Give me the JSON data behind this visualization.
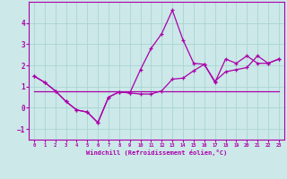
{
  "xlabel": "Windchill (Refroidissement éolien,°C)",
  "bg_color": "#cce8e8",
  "grid_color": "#aad4d4",
  "line_color": "#aa00aa",
  "spine_color": "#aa00aa",
  "xlim": [
    -0.5,
    23.5
  ],
  "ylim": [
    -1.5,
    5.0
  ],
  "yticks": [
    -1,
    0,
    1,
    2,
    3,
    4
  ],
  "xticks": [
    0,
    1,
    2,
    3,
    4,
    5,
    6,
    7,
    8,
    9,
    10,
    11,
    12,
    13,
    14,
    15,
    16,
    17,
    18,
    19,
    20,
    21,
    22,
    23
  ],
  "line1_x": [
    0,
    1,
    2,
    3,
    4,
    5,
    6,
    7,
    8,
    9,
    10,
    11,
    12,
    13,
    14,
    15,
    16,
    17,
    18,
    19,
    20,
    21,
    22,
    23
  ],
  "line1_y": [
    1.5,
    1.2,
    0.8,
    0.3,
    -0.1,
    -0.2,
    -0.7,
    0.5,
    0.75,
    0.7,
    1.8,
    2.8,
    3.5,
    4.6,
    3.2,
    2.1,
    2.05,
    1.2,
    2.3,
    2.1,
    2.45,
    2.1,
    2.1,
    2.3
  ],
  "line2_x": [
    0,
    1,
    2,
    3,
    4,
    5,
    6,
    7,
    8,
    9,
    10,
    11,
    12,
    13,
    14,
    15,
    16,
    17,
    18,
    19,
    20,
    21,
    22,
    23
  ],
  "line2_y": [
    1.5,
    1.2,
    0.8,
    0.3,
    -0.1,
    -0.2,
    -0.7,
    0.5,
    0.75,
    0.7,
    0.65,
    0.65,
    0.8,
    1.35,
    1.4,
    1.75,
    2.05,
    1.25,
    1.7,
    1.8,
    1.9,
    2.45,
    2.1,
    2.3
  ],
  "line3_x": [
    0,
    1,
    2,
    3,
    4,
    5,
    6,
    7,
    8,
    9,
    10,
    11,
    12,
    13,
    14,
    15,
    16,
    17,
    18,
    19,
    20,
    21,
    22,
    23
  ],
  "line3_y": [
    0.78,
    0.78,
    0.78,
    0.78,
    0.78,
    0.78,
    0.78,
    0.78,
    0.78,
    0.78,
    0.78,
    0.78,
    0.78,
    0.78,
    0.78,
    0.78,
    0.78,
    0.78,
    0.78,
    0.78,
    0.78,
    0.78,
    0.78,
    0.78
  ]
}
